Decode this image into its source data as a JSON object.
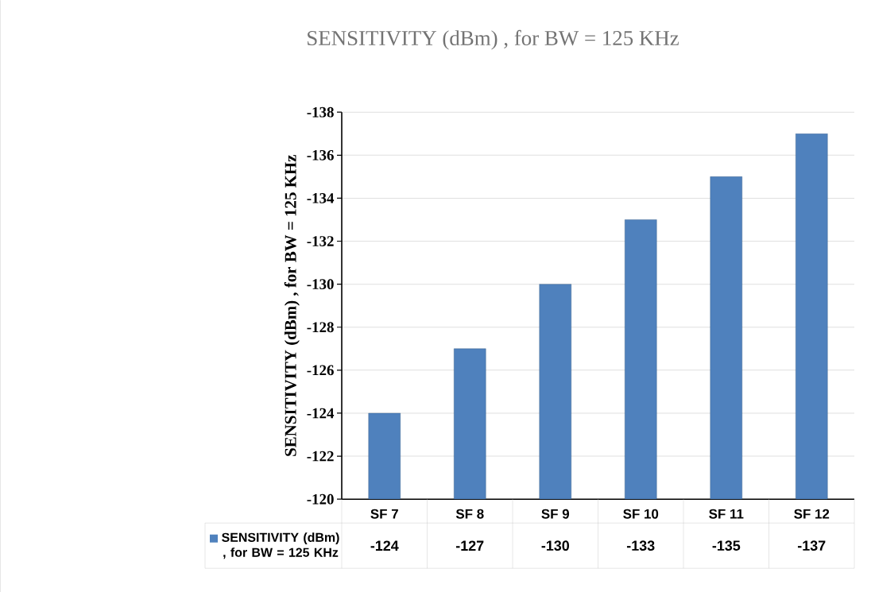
{
  "chart_data": {
    "type": "bar",
    "title": "SENSITIVITY (dBm) , for BW = 125 KHz",
    "ylabel": "SENSITIVITY (dBm) , for BW = 125 KHz",
    "categories": [
      "SF 7",
      "SF 8",
      "SF 9",
      "SF 10",
      "SF 11",
      "SF 12"
    ],
    "series": [
      {
        "name": "SENSITIVITY (dBm) , for BW = 125 KHz",
        "color": "#4f81bd",
        "values": [
          -124,
          -127,
          -130,
          -133,
          -135,
          -137
        ]
      }
    ],
    "ylim": [
      -120,
      -138
    ],
    "yticks": [
      -120,
      -122,
      -124,
      -126,
      -128,
      -130,
      -132,
      -134,
      -136,
      -138
    ],
    "grid": "y",
    "data_labels": true,
    "legend": "bottom"
  }
}
